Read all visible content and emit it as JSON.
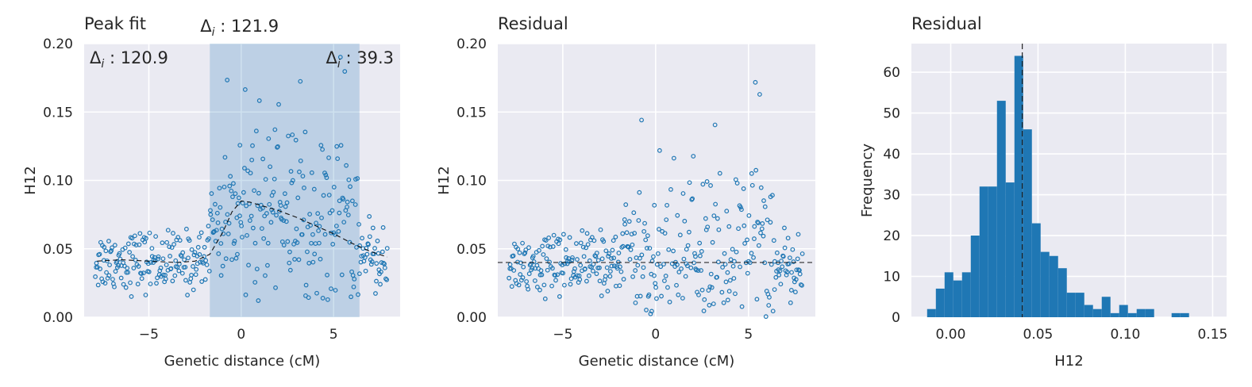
{
  "chart_data": [
    {
      "type": "scatter",
      "title": "Peak fit",
      "xlabel": "Genetic distance (cM)",
      "ylabel": "H12",
      "xlim": [
        -8.5,
        8.6
      ],
      "ylim": [
        0,
        0.2
      ],
      "xticks": [
        -5,
        0,
        5
      ],
      "xtick_labels": [
        "−5",
        "0",
        "5"
      ],
      "yticks": [
        0,
        0.05,
        0.1,
        0.15,
        0.2
      ],
      "ytick_labels": [
        "0.00",
        "0.05",
        "0.10",
        "0.15",
        "0.20"
      ],
      "grid": true,
      "point_color": "#1f77b4",
      "shaded_region": {
        "x": [
          -1.7,
          6.4
        ],
        "color": "#1f77b4",
        "opacity": 0.22
      },
      "annotations": [
        {
          "label": "Δ",
          "sub": "i",
          "text": " : 120.9",
          "position": "top-left"
        },
        {
          "label": "Δ",
          "sub": "i",
          "text": " : 121.9",
          "position": "above-shaded"
        },
        {
          "label": "Δ",
          "sub": "i",
          "text": " : 39.3",
          "position": "top-right"
        }
      ],
      "fit_line": {
        "x": [
          -7.8,
          -6.5,
          -5,
          -3.5,
          -2.5,
          -1.7,
          -1.0,
          -0.5,
          0,
          0.5,
          1,
          2,
          3,
          4,
          5,
          6,
          7,
          7.9
        ],
        "y": [
          0.041,
          0.042,
          0.041,
          0.04,
          0.041,
          0.046,
          0.062,
          0.077,
          0.085,
          0.084,
          0.082,
          0.078,
          0.073,
          0.067,
          0.061,
          0.054,
          0.048,
          0.044
        ]
      }
    },
    {
      "type": "scatter",
      "title": "Residual",
      "xlabel": "Genetic distance (cM)",
      "ylabel": "H12",
      "xlim": [
        -8.5,
        8.6
      ],
      "ylim": [
        0,
        0.2
      ],
      "xticks": [
        -5,
        0,
        5
      ],
      "xtick_labels": [
        "−5",
        "0",
        "5"
      ],
      "yticks": [
        0,
        0.05,
        0.1,
        0.15,
        0.2
      ],
      "ytick_labels": [
        "0.00",
        "0.05",
        "0.10",
        "0.15",
        "0.20"
      ],
      "grid": true,
      "point_color": "#1f77b4",
      "hline": 0.04
    },
    {
      "type": "bar",
      "title": "Residual",
      "xlabel": "H12",
      "ylabel": "Frequency",
      "xlim": [
        -0.0225,
        0.158
      ],
      "ylim": [
        0,
        67
      ],
      "xticks": [
        0,
        0.05,
        0.1,
        0.15
      ],
      "xtick_labels": [
        "0.00",
        "0.05",
        "0.10",
        "0.15"
      ],
      "yticks": [
        0,
        10,
        20,
        30,
        40,
        50,
        60
      ],
      "ytick_labels": [
        "0",
        "10",
        "20",
        "30",
        "40",
        "50",
        "60"
      ],
      "grid": true,
      "bar_color": "#1f77b4",
      "vline": 0.041,
      "bin_start": -0.0135,
      "bin_width": 0.005,
      "values": [
        2,
        7,
        11,
        9,
        11,
        20,
        32,
        32,
        53,
        33,
        64,
        46,
        23,
        16,
        15,
        12,
        6,
        6,
        3,
        2,
        5,
        1,
        3,
        1,
        2,
        2,
        0,
        0,
        1,
        1
      ]
    }
  ]
}
